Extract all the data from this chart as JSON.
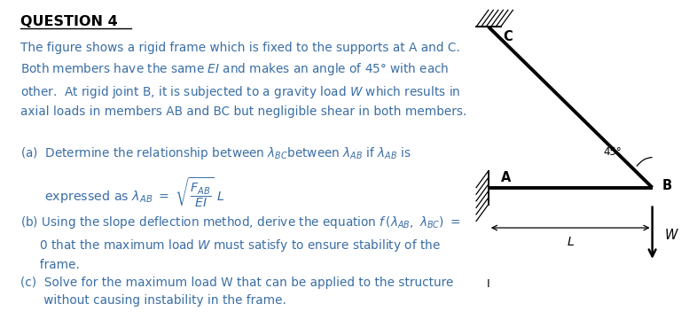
{
  "bg_color": "#ffffff",
  "title": "QUESTION 4",
  "text_color": "#3a6ea5",
  "text_color_dark": "#2b2b2b",
  "fig_nodes": {
    "A": [
      0.18,
      0.44
    ],
    "B": [
      0.85,
      0.44
    ],
    "C": [
      0.18,
      0.92
    ]
  },
  "support_hatch_n": 6,
  "lw_member": 2.8,
  "lw_support": 1.4,
  "angle_label": "45°",
  "L_label": "L",
  "W_label": "W",
  "I_label": "I",
  "A_label": "A",
  "B_label": "B",
  "C_label": "C"
}
